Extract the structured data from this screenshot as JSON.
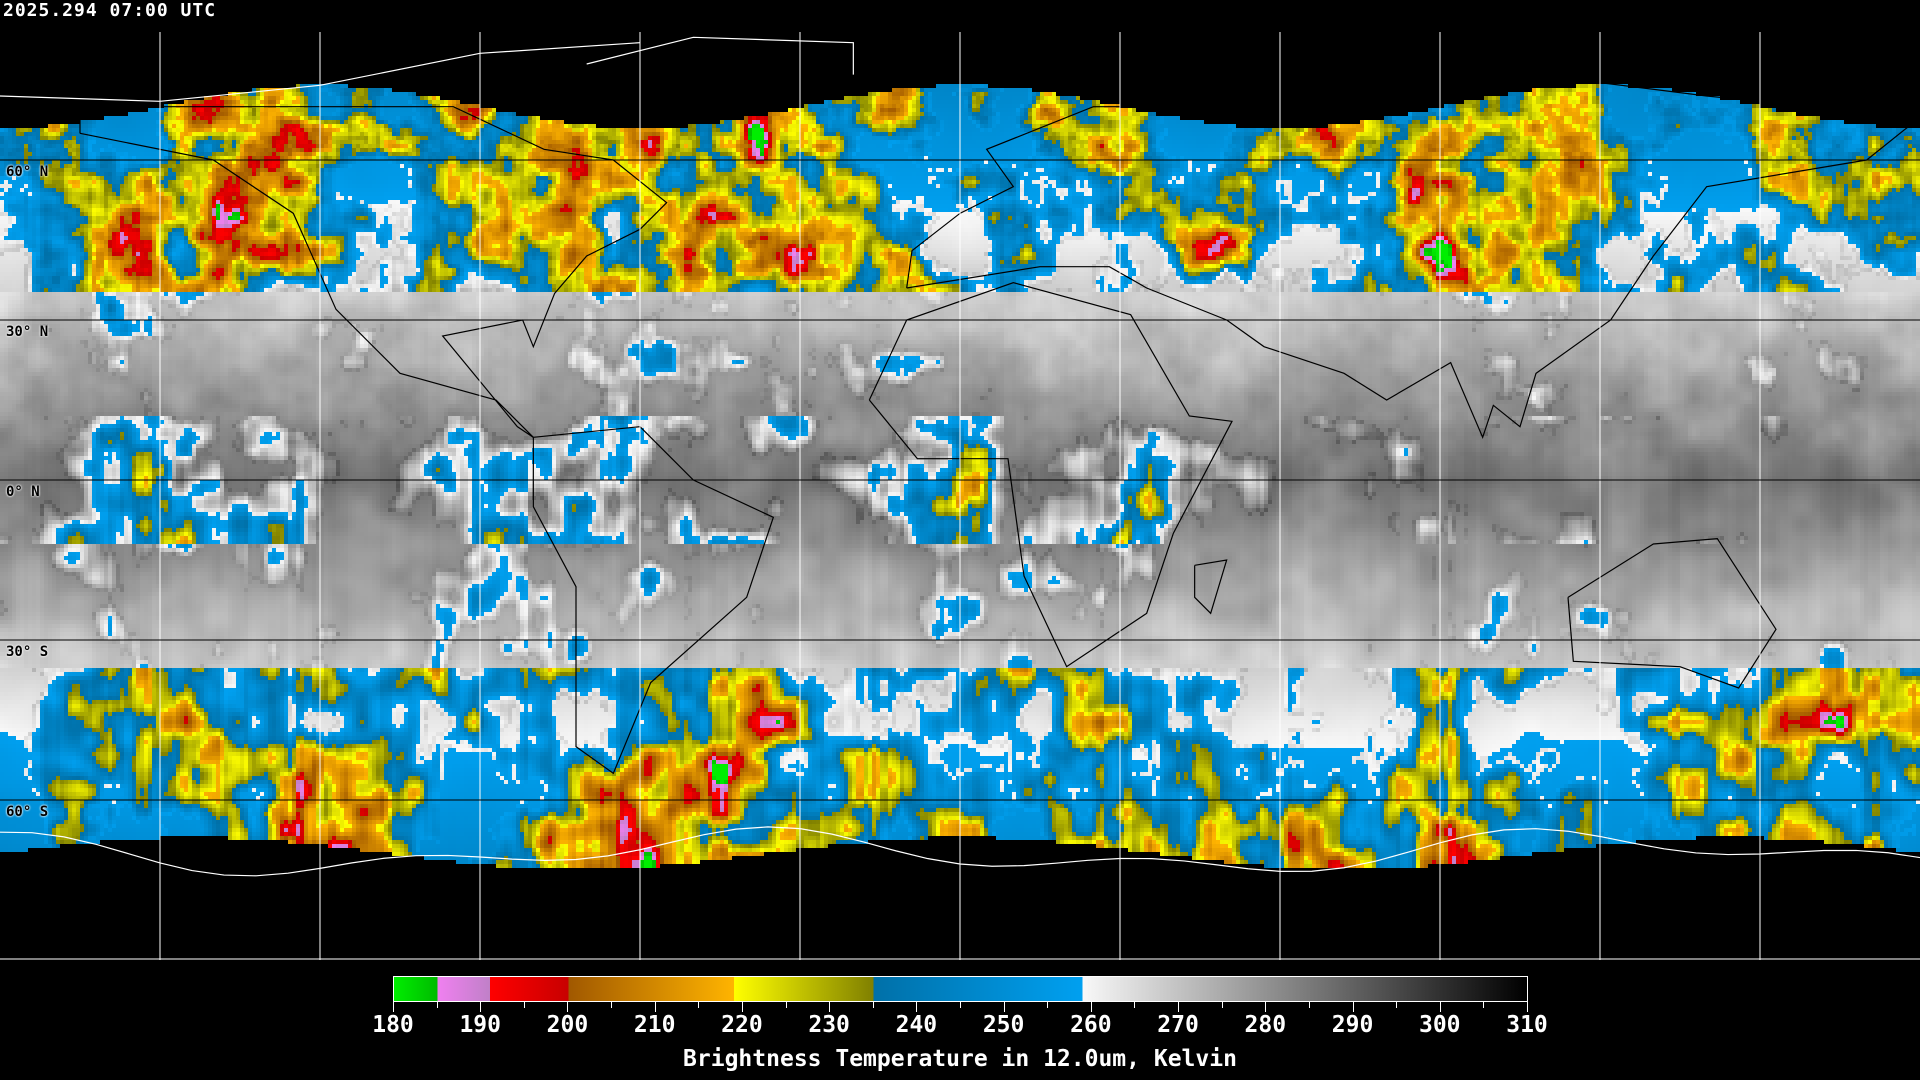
{
  "header": {
    "timestamp": "2025.294 07:00 UTC"
  },
  "map": {
    "projection": "equirectangular",
    "lat_labels": [
      {
        "lat": 60,
        "label": "60° N"
      },
      {
        "lat": 30,
        "label": "30° N"
      },
      {
        "lat": 0,
        "label": "0° N"
      },
      {
        "lat": -30,
        "label": "30° S"
      },
      {
        "lat": -60,
        "label": "60° S"
      }
    ],
    "grid_spacing_deg": 30,
    "grid_color": "#ffffff",
    "coastline_color_data": "#000000",
    "coastline_color_nodata": "#ffffff",
    "data_lat_range": [
      70,
      -70
    ]
  },
  "colorbar": {
    "title": "Brightness Temperature in 12.0um, Kelvin",
    "min": 180,
    "max": 310,
    "tick_labels": [
      "180",
      "190",
      "200",
      "210",
      "220",
      "230",
      "240",
      "250",
      "260",
      "270",
      "280",
      "290",
      "300",
      "310"
    ],
    "segments": [
      {
        "from": 180,
        "to": 185,
        "colors": [
          "#00ee00",
          "#00bb00"
        ]
      },
      {
        "from": 185,
        "to": 191,
        "colors": [
          "#f080f0",
          "#c080c8"
        ]
      },
      {
        "from": 191,
        "to": 200,
        "colors": [
          "#ff0000",
          "#c80000"
        ]
      },
      {
        "from": 200,
        "to": 219,
        "colors": [
          "#a05800",
          "#ffb400"
        ]
      },
      {
        "from": 219,
        "to": 235,
        "colors": [
          "#ffff00",
          "#808000"
        ]
      },
      {
        "from": 235,
        "to": 259,
        "colors": [
          "#0070a8",
          "#00a0f0"
        ]
      },
      {
        "from": 259,
        "to": 310,
        "colors": [
          "#f8f8f8",
          "#000000"
        ]
      }
    ]
  }
}
